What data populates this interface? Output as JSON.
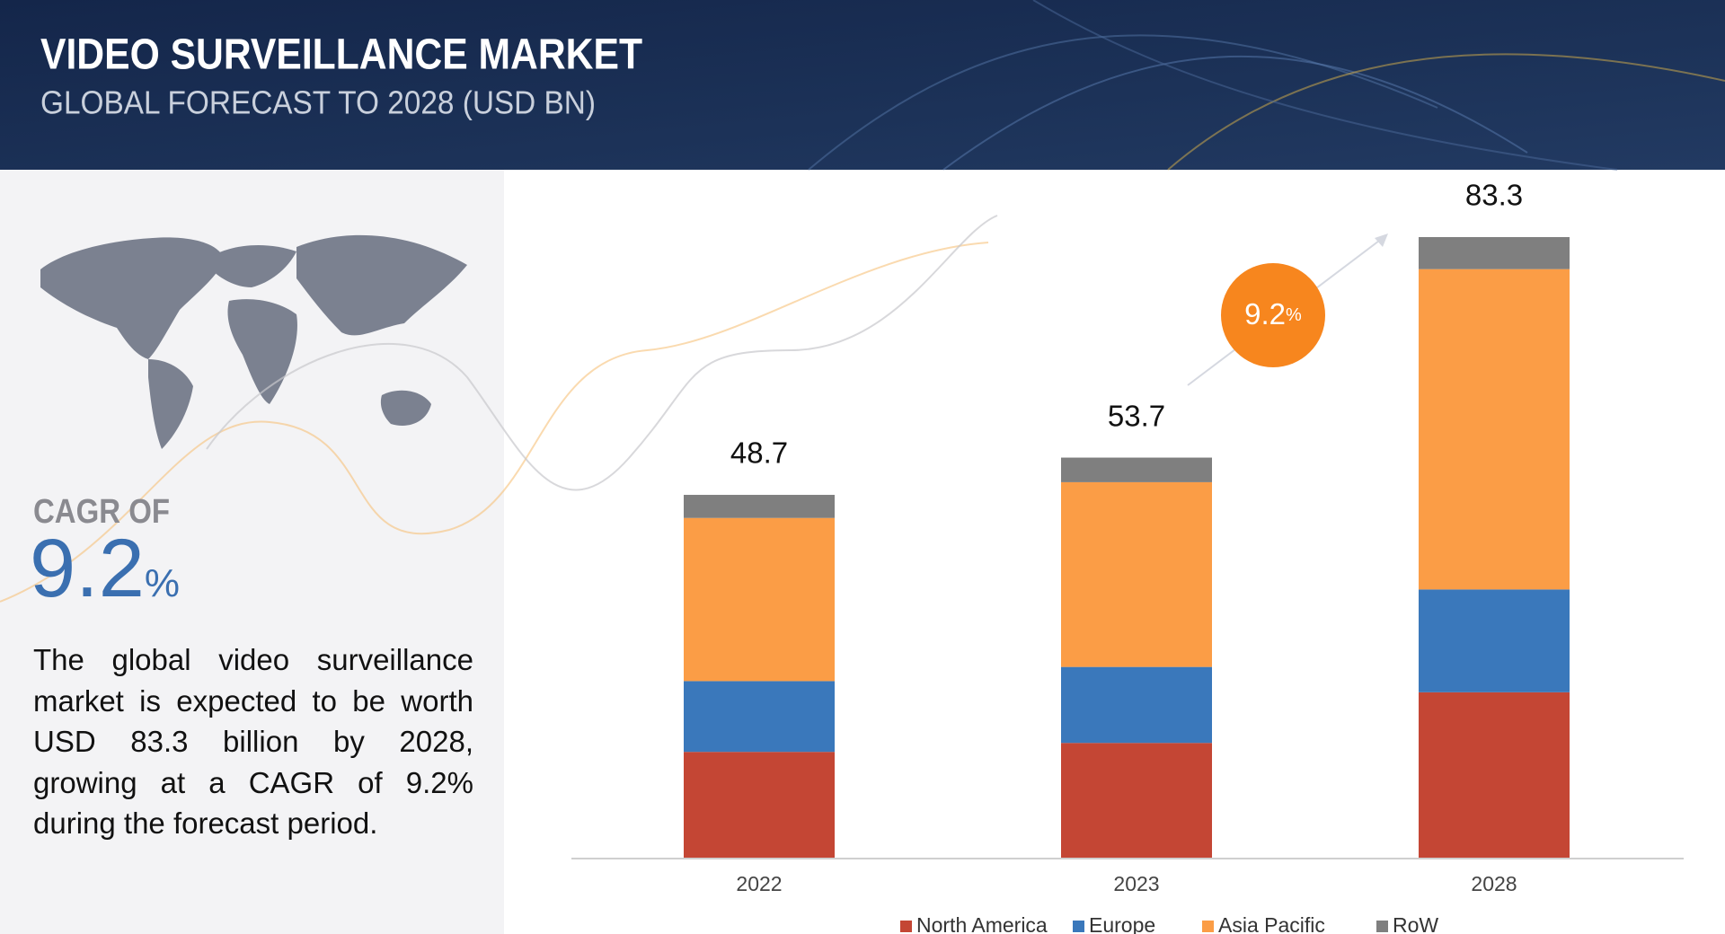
{
  "header": {
    "title": "VIDEO SURVEILLANCE MARKET",
    "subtitle": "GLOBAL FORECAST TO 2028 (USD BN)"
  },
  "cagr": {
    "label": "CAGR OF",
    "value": 9.2,
    "unit": "%"
  },
  "description": "The global video surveillance market is expected to be worth USD 83.3 billion by 2028, growing at a CAGR of 9.2% during the forecast period.",
  "chart_data": {
    "type": "stacked_bar",
    "categories": [
      "2022",
      "2023",
      "2028"
    ],
    "totals": [
      48.7,
      53.7,
      83.3
    ],
    "series": [
      {
        "name": "North America",
        "color": "#c44634",
        "values": [
          14.2,
          15.4,
          22.2
        ]
      },
      {
        "name": "Europe",
        "color": "#3a78bb",
        "values": [
          9.5,
          10.2,
          13.8
        ]
      },
      {
        "name": "Asia Pacific",
        "color": "#fb9d46",
        "values": [
          21.9,
          24.8,
          43.0
        ]
      },
      {
        "name": "RoW",
        "color": "#7f7f7f",
        "values": [
          3.1,
          3.3,
          4.3
        ]
      }
    ],
    "annotation": {
      "value": 9.2,
      "unit": "%"
    },
    "legend": "bottom"
  }
}
